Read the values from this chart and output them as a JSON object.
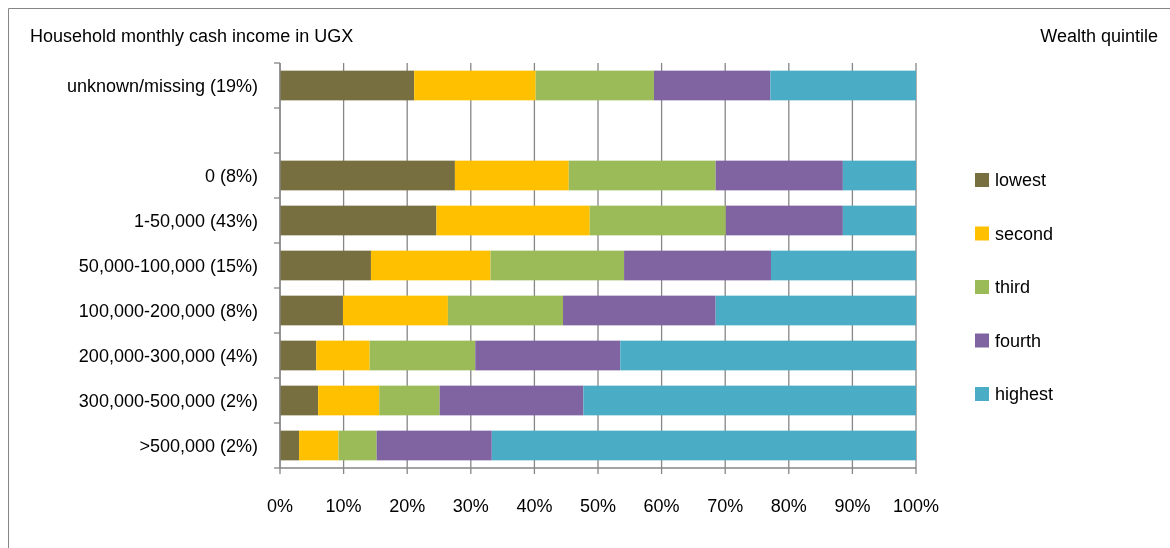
{
  "chart_data": {
    "type": "bar",
    "orientation": "horizontal",
    "stacked": true,
    "title": "Household monthly cash income in UGX",
    "legend_title": "Wealth quintile",
    "categories": [
      "unknown/missing (19%)",
      null,
      "0 (8%)",
      "1-50,000 (43%)",
      "50,000-100,000 (15%)",
      "100,000-200,000 (8%)",
      "200,000-300,000 (4%)",
      "300,000-500,000 (2%)",
      ">500,000 (2%)"
    ],
    "series": [
      {
        "name": "lowest",
        "color": "#786f41",
        "values": [
          21.1,
          null,
          27.5,
          24.6,
          14.3,
          9.9,
          5.7,
          6.0,
          3.0
        ]
      },
      {
        "name": "second",
        "color": "#ffc000",
        "values": [
          19.1,
          null,
          17.9,
          24.1,
          18.8,
          16.5,
          8.4,
          9.6,
          6.2
        ]
      },
      {
        "name": "third",
        "color": "#9bbb59",
        "values": [
          18.6,
          null,
          23.1,
          21.4,
          21.0,
          18.1,
          16.6,
          9.5,
          6.0
        ]
      },
      {
        "name": "fourth",
        "color": "#8064a2",
        "values": [
          18.3,
          null,
          20.0,
          18.4,
          23.1,
          24.0,
          22.8,
          22.6,
          18.1
        ]
      },
      {
        "name": "highest",
        "color": "#4bacc6",
        "values": [
          22.9,
          null,
          11.5,
          11.5,
          22.8,
          31.5,
          46.5,
          52.3,
          66.7
        ]
      }
    ],
    "xlim": [
      0,
      100
    ],
    "xticks": [
      {
        "value": 0,
        "label": "0%"
      },
      {
        "value": 10,
        "label": "10%"
      },
      {
        "value": 20,
        "label": "20%"
      },
      {
        "value": 30,
        "label": "30%"
      },
      {
        "value": 40,
        "label": "40%"
      },
      {
        "value": 50,
        "label": "50%"
      },
      {
        "value": 60,
        "label": "60%"
      },
      {
        "value": 70,
        "label": "70%"
      },
      {
        "value": 80,
        "label": "80%"
      },
      {
        "value": 90,
        "label": "90%"
      },
      {
        "value": 100,
        "label": "100%"
      }
    ],
    "grid": "x",
    "legend": "right"
  }
}
